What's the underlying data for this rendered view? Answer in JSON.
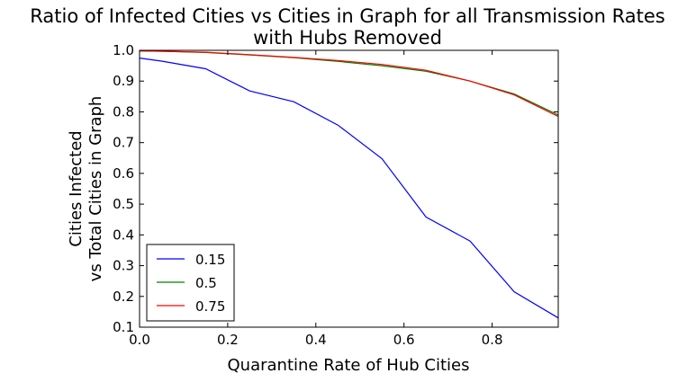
{
  "chart_data": {
    "type": "line",
    "title_lines": [
      "Ratio of Infected Cities vs Cities in Graph for all Transmission Rates",
      "with Hubs Removed"
    ],
    "xlabel": "Quarantine Rate of Hub Cities",
    "ylabel_lines": [
      "Cities Infected",
      "vs Total Cities in Graph"
    ],
    "xlim": [
      0.0,
      0.95
    ],
    "ylim": [
      0.1,
      1.0
    ],
    "xticks": [
      "0.0",
      "0.2",
      "0.4",
      "0.6",
      "0.8"
    ],
    "yticks": [
      "0.1",
      "0.2",
      "0.3",
      "0.4",
      "0.5",
      "0.6",
      "0.7",
      "0.8",
      "0.9",
      "1.0"
    ],
    "grid": false,
    "legend_position": "lower-left",
    "x": [
      0.0,
      0.05,
      0.15,
      0.25,
      0.35,
      0.45,
      0.55,
      0.65,
      0.75,
      0.85,
      0.95
    ],
    "series": [
      {
        "name": "0.15",
        "color": "#0000ff",
        "values": [
          0.975,
          0.965,
          0.94,
          0.868,
          0.833,
          0.757,
          0.648,
          0.458,
          0.38,
          0.215,
          0.13
        ]
      },
      {
        "name": "0.5",
        "color": "#008000",
        "values": [
          0.998,
          0.997,
          0.993,
          0.985,
          0.976,
          0.964,
          0.95,
          0.932,
          0.9,
          0.858,
          0.79
        ]
      },
      {
        "name": "0.75",
        "color": "#ff0000",
        "values": [
          0.998,
          0.997,
          0.994,
          0.986,
          0.977,
          0.967,
          0.954,
          0.935,
          0.9,
          0.855,
          0.785
        ]
      }
    ]
  }
}
